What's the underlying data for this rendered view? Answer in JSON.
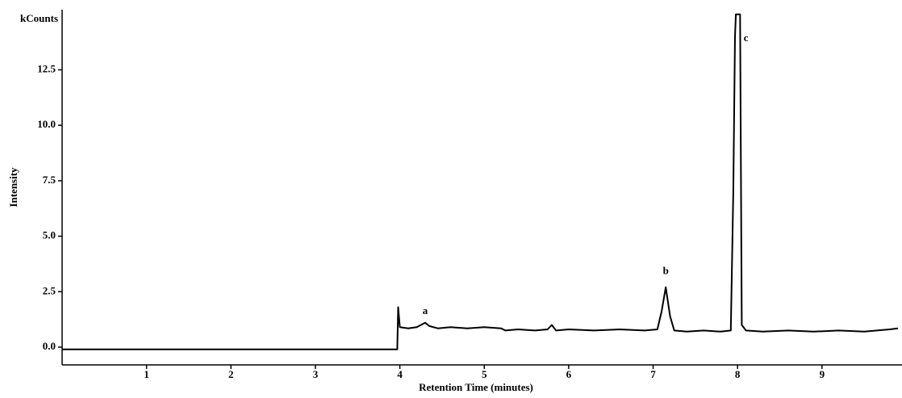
{
  "chart_data": {
    "type": "line",
    "y_unit": "kCounts",
    "x_label": "Retention Time (minutes)",
    "y_label": "Intensity",
    "x": [
      0,
      3.97,
      3.98,
      4.0,
      4.1,
      4.2,
      4.3,
      4.35,
      4.45,
      4.6,
      4.8,
      5.0,
      5.2,
      5.25,
      5.4,
      5.6,
      5.75,
      5.8,
      5.85,
      6.0,
      6.3,
      6.6,
      6.9,
      7.05,
      7.1,
      7.15,
      7.2,
      7.25,
      7.4,
      7.6,
      7.8,
      7.92,
      7.95,
      7.97,
      7.98,
      8.03,
      8.05,
      8.1,
      8.3,
      8.6,
      8.9,
      9.2,
      9.5,
      9.8,
      9.9
    ],
    "series": [
      {
        "color": "#000000",
        "values": [
          -0.1,
          -0.1,
          1.8,
          0.9,
          0.85,
          0.9,
          1.1,
          0.95,
          0.85,
          0.9,
          0.85,
          0.9,
          0.85,
          0.75,
          0.8,
          0.75,
          0.8,
          1.0,
          0.75,
          0.8,
          0.75,
          0.8,
          0.75,
          0.8,
          1.6,
          2.7,
          1.4,
          0.75,
          0.7,
          0.75,
          0.7,
          0.75,
          7.0,
          14.0,
          15.0,
          15.0,
          1.0,
          0.75,
          0.7,
          0.75,
          0.7,
          0.75,
          0.7,
          0.8,
          0.85
        ]
      }
    ],
    "annotations": [
      {
        "text": "a",
        "x": 4.3,
        "y": 1.6
      },
      {
        "text": "b",
        "x": 7.15,
        "y": 3.4
      },
      {
        "text": "c",
        "x": 8.1,
        "y": 13.9
      }
    ],
    "xlim": [
      0,
      9.9
    ],
    "xticks": [
      1,
      2,
      3,
      4,
      5,
      6,
      7,
      8,
      9
    ],
    "ylim": [
      -0.8,
      15.1
    ],
    "yticks": [
      {
        "value": 0,
        "label": "0.0"
      },
      2.5,
      {
        "value": 5,
        "label": "5.0"
      },
      7.5,
      {
        "value": 10,
        "label": "10.0"
      },
      12.5
    ]
  }
}
